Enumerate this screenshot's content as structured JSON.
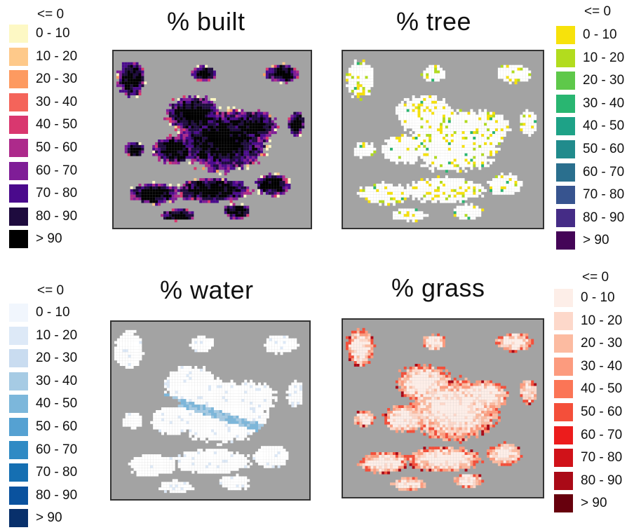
{
  "panels": [
    {
      "id": "built",
      "title": "% built",
      "colormap": "magma-like purple/black",
      "legend": {
        "header": "<= 0",
        "classes": [
          {
            "label": "0 - 10",
            "color": "#fdf8c4"
          },
          {
            "label": "10 - 20",
            "color": "#fec98a"
          },
          {
            "label": "20 - 30",
            "color": "#fd9a60"
          },
          {
            "label": "30 - 40",
            "color": "#f4645a"
          },
          {
            "label": "40 - 50",
            "color": "#d9376f"
          },
          {
            "label": "50 - 60",
            "color": "#ad2a8b"
          },
          {
            "label": "60 - 70",
            "color": "#7f1d97"
          },
          {
            "label": "70 - 80",
            "color": "#4a0a8c"
          },
          {
            "label": "80 - 90",
            "color": "#1e0b3e"
          },
          {
            "label": "> 90",
            "color": "#000000"
          }
        ]
      }
    },
    {
      "id": "tree",
      "title": "% tree",
      "colormap": "viridis reversed",
      "legend": {
        "header": "<= 0",
        "classes": [
          {
            "label": "0 - 10",
            "color": "#f7e20b"
          },
          {
            "label": "10 - 20",
            "color": "#b2dc1e"
          },
          {
            "label": "20 - 30",
            "color": "#5ec84a"
          },
          {
            "label": "30 - 40",
            "color": "#29b671"
          },
          {
            "label": "40 - 50",
            "color": "#1ea287"
          },
          {
            "label": "50 - 60",
            "color": "#218b8c"
          },
          {
            "label": "60 - 70",
            "color": "#2a6f8e"
          },
          {
            "label": "70 - 80",
            "color": "#37548f"
          },
          {
            "label": "80 - 90",
            "color": "#452c86"
          },
          {
            "label": "> 90",
            "color": "#440557"
          }
        ]
      }
    },
    {
      "id": "water",
      "title": "% water",
      "colormap": "blues",
      "legend": {
        "header": "<= 0",
        "classes": [
          {
            "label": "0 - 10",
            "color": "#f1f6fd"
          },
          {
            "label": "10 - 20",
            "color": "#dde9f7"
          },
          {
            "label": "20 - 30",
            "color": "#c9dcf0"
          },
          {
            "label": "30 - 40",
            "color": "#a6cbe4"
          },
          {
            "label": "40 - 50",
            "color": "#7cb7db"
          },
          {
            "label": "50 - 60",
            "color": "#55a1d2"
          },
          {
            "label": "60 - 70",
            "color": "#2f8ac4"
          },
          {
            "label": "70 - 80",
            "color": "#156fb2"
          },
          {
            "label": "80 - 90",
            "color": "#0a529e"
          },
          {
            "label": "> 90",
            "color": "#08306b"
          }
        ]
      }
    },
    {
      "id": "grass",
      "title": "% grass",
      "colormap": "reds",
      "legend": {
        "header": "<= 0",
        "classes": [
          {
            "label": "0 - 10",
            "color": "#fdeee8"
          },
          {
            "label": "10 - 20",
            "color": "#fdd8ca"
          },
          {
            "label": "20 - 30",
            "color": "#fcbba1"
          },
          {
            "label": "30 - 40",
            "color": "#fc9b7e"
          },
          {
            "label": "40 - 50",
            "color": "#fb7556"
          },
          {
            "label": "50 - 60",
            "color": "#f44f3a"
          },
          {
            "label": "60 - 70",
            "color": "#ec1c1c"
          },
          {
            "label": "70 - 80",
            "color": "#d01219"
          },
          {
            "label": "80 - 90",
            "color": "#aa0a17"
          },
          {
            "label": "> 90",
            "color": "#67000d"
          }
        ]
      }
    }
  ],
  "background_color": "#a3a3a3"
}
